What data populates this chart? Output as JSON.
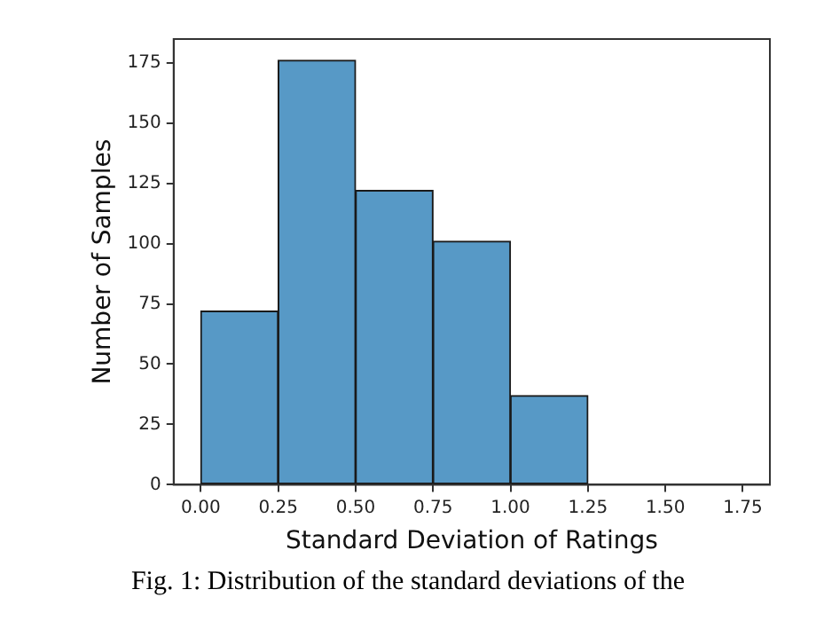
{
  "chart_data": {
    "type": "histogram",
    "xlabel": "Standard Deviation of Ratings",
    "ylabel": "Number of Samples",
    "bins": [
      0,
      0.25,
      0.5,
      0.75,
      1.0,
      1.25,
      1.5,
      1.75
    ],
    "values": [
      72,
      176,
      122,
      101,
      37,
      0,
      0
    ],
    "color": "#5799c6",
    "xlim": [
      -0.0875,
      1.8375
    ],
    "xticks": [
      {
        "value": 0,
        "label": "0.00"
      },
      {
        "value": 0.25,
        "label": "0.25"
      },
      {
        "value": 0.5,
        "label": "0.50"
      },
      {
        "value": 0.75,
        "label": "0.75"
      },
      {
        "value": 1.0,
        "label": "1.00"
      },
      {
        "value": 1.25,
        "label": "1.25"
      },
      {
        "value": 1.5,
        "label": "1.50"
      },
      {
        "value": 1.75,
        "label": "1.75"
      }
    ],
    "ylim": [
      0,
      184.8
    ],
    "yticks": [
      0,
      25,
      50,
      75,
      100,
      125,
      150,
      175
    ],
    "grid": false,
    "legend": false,
    "annotations": [
      "Fig. 1: Distribution of the standard deviations of the"
    ]
  }
}
